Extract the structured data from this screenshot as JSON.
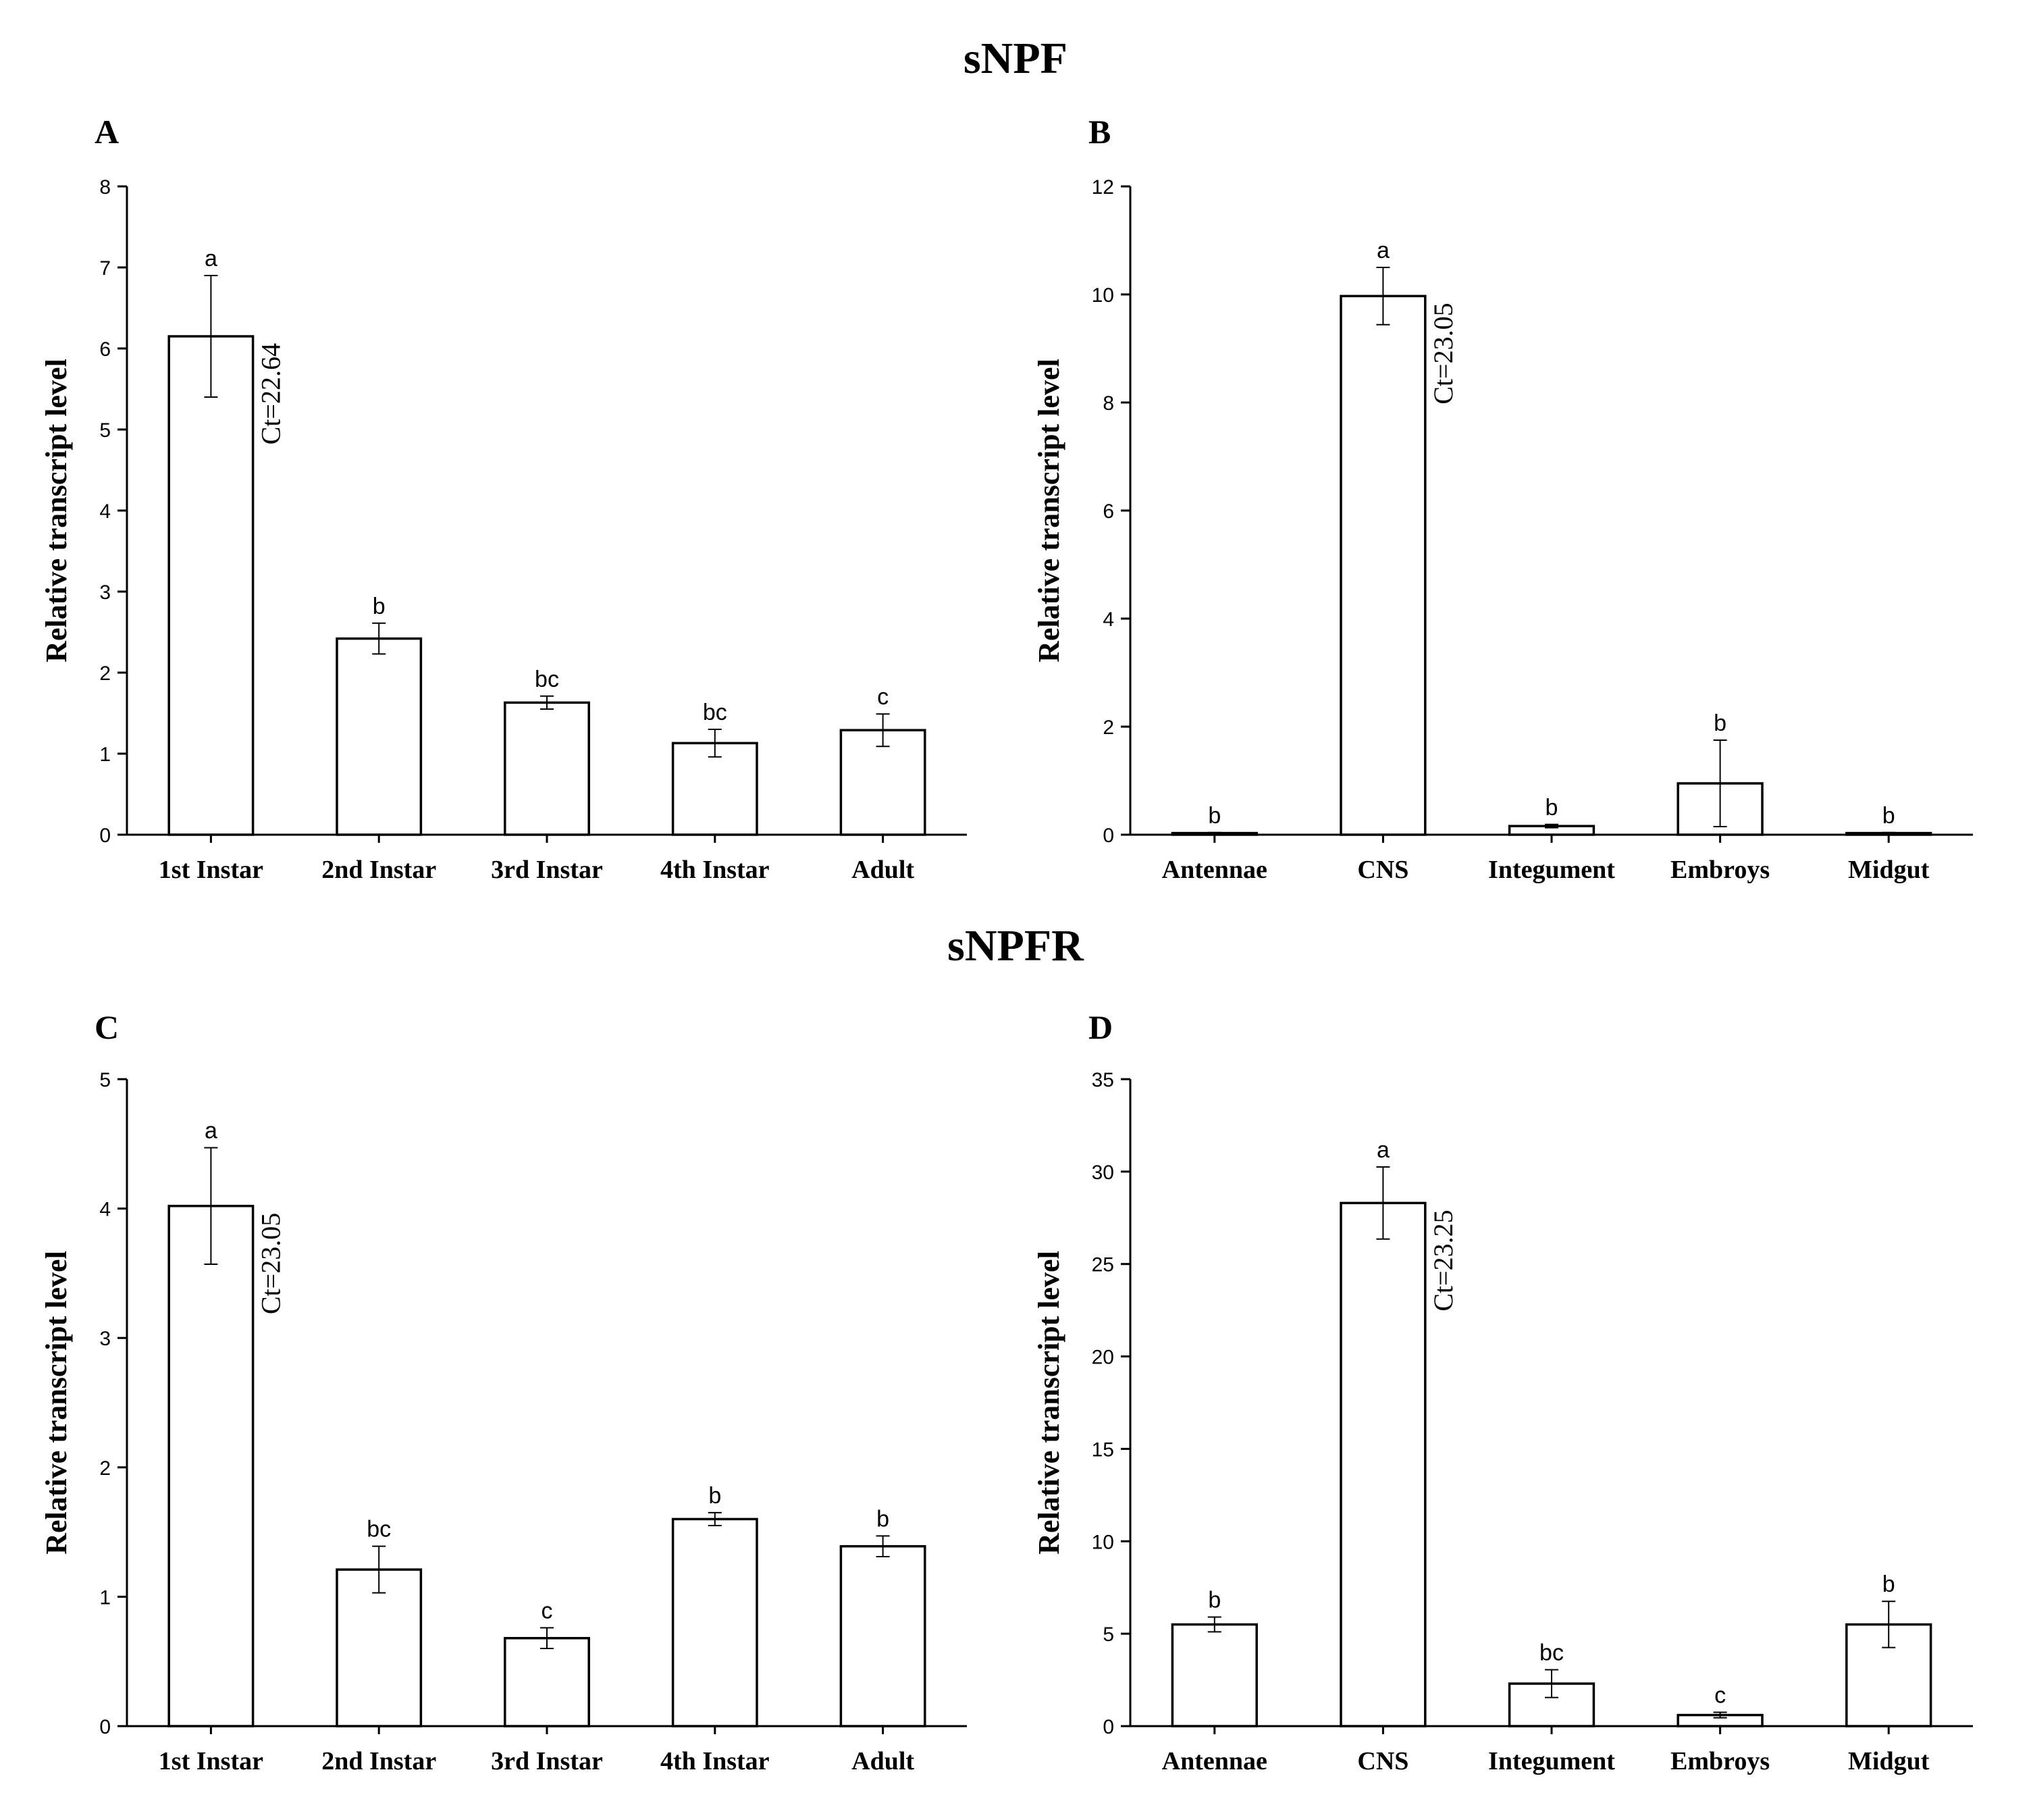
{
  "titles": {
    "top": "sNPF",
    "bottom": "sNPFR"
  },
  "chart_data": [
    {
      "panel": "A",
      "type": "bar",
      "ylabel": "Relative transcript level",
      "ylim": [
        0,
        8
      ],
      "yticks": [
        0,
        1,
        2,
        3,
        4,
        5,
        6,
        7,
        8
      ],
      "categories": [
        "1st Instar",
        "2nd Instar",
        "3rd Instar",
        "4th Instar",
        "Adult"
      ],
      "values": [
        6.15,
        2.42,
        1.63,
        1.13,
        1.29
      ],
      "errors": [
        0.75,
        0.19,
        0.08,
        0.17,
        0.2
      ],
      "significance": [
        "a",
        "b",
        "bc",
        "bc",
        "c"
      ],
      "annotation": {
        "text": "Ct=22.64",
        "bar_index": 0
      }
    },
    {
      "panel": "B",
      "type": "bar",
      "ylabel": "Relative transcript level",
      "ylim": [
        0,
        12
      ],
      "yticks": [
        0,
        2,
        4,
        6,
        8,
        10,
        12
      ],
      "categories": [
        "Antennae",
        "CNS",
        "Integument",
        "Embroys",
        "Midgut"
      ],
      "values": [
        0.03,
        9.97,
        0.16,
        0.95,
        0.03
      ],
      "errors": [
        0.01,
        0.53,
        0.03,
        0.8,
        0.01
      ],
      "significance": [
        "b",
        "a",
        "b",
        "b",
        "b"
      ],
      "annotation": {
        "text": "Ct=23.05",
        "bar_index": 1
      }
    },
    {
      "panel": "C",
      "type": "bar",
      "ylabel": "Relative transcript level",
      "ylim": [
        0,
        5
      ],
      "yticks": [
        0,
        1,
        2,
        3,
        4,
        5
      ],
      "categories": [
        "1st Instar",
        "2nd Instar",
        "3rd Instar",
        "4th Instar",
        "Adult"
      ],
      "values": [
        4.02,
        1.21,
        0.68,
        1.6,
        1.39
      ],
      "errors": [
        0.45,
        0.18,
        0.08,
        0.05,
        0.08
      ],
      "significance": [
        "a",
        "bc",
        "c",
        "b",
        "b"
      ],
      "annotation": {
        "text": "Ct=23.05",
        "bar_index": 0
      }
    },
    {
      "panel": "D",
      "type": "bar",
      "ylabel": "Relative transcript level",
      "ylim": [
        0,
        35
      ],
      "yticks": [
        0,
        5,
        10,
        15,
        20,
        25,
        30,
        35
      ],
      "categories": [
        "Antennae",
        "CNS",
        "Integument",
        "Embroys",
        "Midgut"
      ],
      "values": [
        5.5,
        28.3,
        2.3,
        0.6,
        5.5
      ],
      "errors": [
        0.4,
        1.95,
        0.75,
        0.15,
        1.25
      ],
      "significance": [
        "b",
        "a",
        "bc",
        "c",
        "b"
      ],
      "annotation": {
        "text": "Ct=23.25",
        "bar_index": 1
      }
    }
  ]
}
